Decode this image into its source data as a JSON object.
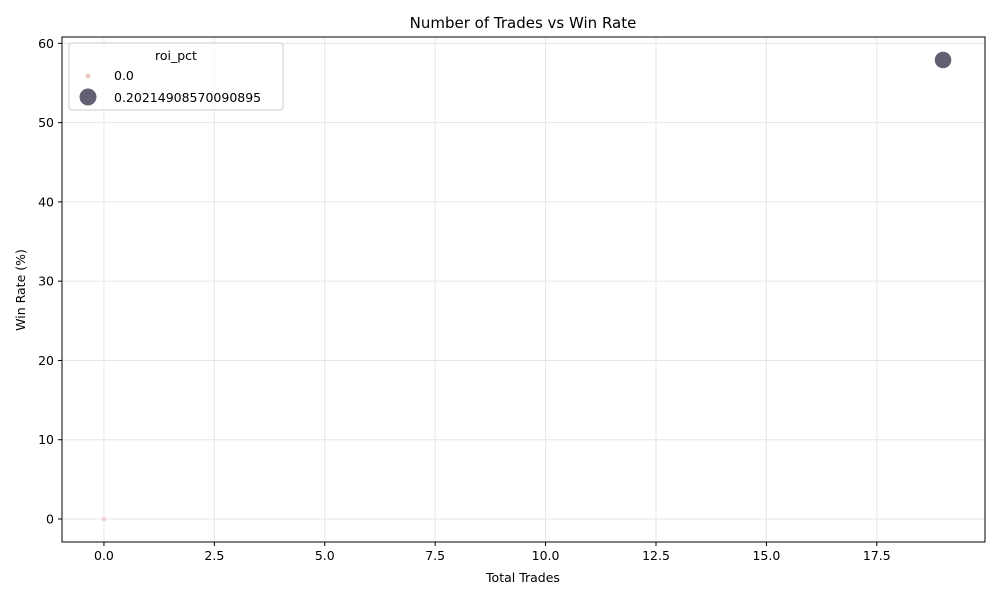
{
  "chart_data": {
    "type": "scatter",
    "title": "Number of Trades vs Win Rate",
    "xlabel": "Total Trades",
    "ylabel": "Win Rate (%)",
    "xlim": [
      -0.95,
      19.95
    ],
    "ylim": [
      -2.9,
      60.8
    ],
    "xticks": [
      0.0,
      2.5,
      5.0,
      7.5,
      10.0,
      12.5,
      15.0,
      17.5
    ],
    "xtick_labels": [
      "0.0",
      "2.5",
      "5.0",
      "7.5",
      "10.0",
      "12.5",
      "15.0",
      "17.5"
    ],
    "yticks": [
      0,
      10,
      20,
      30,
      40,
      50,
      60
    ],
    "ytick_labels": [
      "0",
      "10",
      "20",
      "30",
      "40",
      "50",
      "60"
    ],
    "grid": true,
    "hue_variable": "roi_pct",
    "points": [
      {
        "x": 0,
        "y": 0.0,
        "roi_pct": 0.0,
        "color": "#e8c9c2"
      },
      {
        "x": 19,
        "y": 57.9,
        "roi_pct": 0.20214908570090895,
        "color": "#3f3750"
      }
    ],
    "legend": {
      "title": "roi_pct",
      "position": "upper-left",
      "entries": [
        {
          "label": "0.0",
          "color": "#e8c9c2",
          "size": "small"
        },
        {
          "label": "0.20214908570090895",
          "color": "#3f3750",
          "size": "large"
        }
      ]
    }
  }
}
